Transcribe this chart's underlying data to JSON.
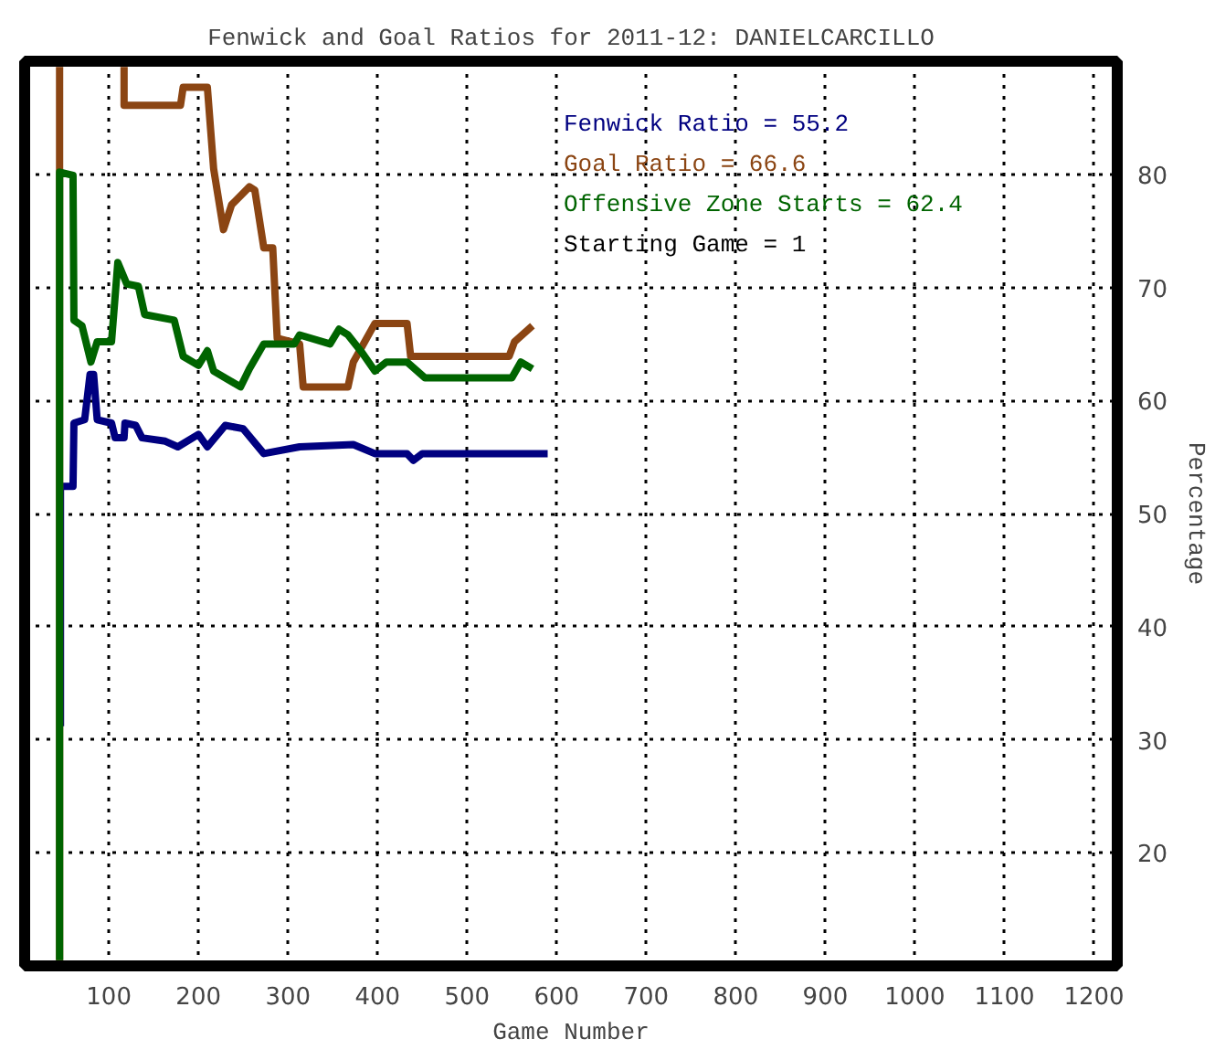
{
  "chart_data": {
    "type": "line",
    "title": "Fenwick and Goal Ratios for 2011-12: DANIELCARCILLO",
    "xlabel": "Game Number",
    "ylabel": "Percentage",
    "xlim": [
      6,
      1226
    ],
    "ylim": [
      10,
      90
    ],
    "xticks": [
      100,
      200,
      300,
      400,
      500,
      600,
      700,
      800,
      900,
      1000,
      1100,
      1200
    ],
    "yticks": [
      20,
      30,
      40,
      50,
      60,
      70,
      80
    ],
    "grid": true,
    "legend": "top right",
    "line_style": "solid",
    "marker": "none",
    "annotations": [
      "Starting Game = 1"
    ],
    "series": [
      {
        "name": "Fenwick Ratio = 55.2",
        "color": "#000080",
        "x": [
          46,
          46,
          50,
          60,
          61,
          73,
          79,
          83,
          87,
          103,
          107,
          117,
          118,
          130,
          137,
          163,
          177,
          200,
          210,
          230,
          250,
          273,
          313,
          373,
          397,
          433,
          440,
          450,
          590
        ],
        "values": [
          31.2,
          52.4,
          52.4,
          52.4,
          58.0,
          58.3,
          62.3,
          62.3,
          58.3,
          58.0,
          56.7,
          56.7,
          58.0,
          57.8,
          56.7,
          56.4,
          55.9,
          57.0,
          55.9,
          57.8,
          57.5,
          55.3,
          55.9,
          56.1,
          55.3,
          55.3,
          54.7,
          55.3,
          55.3
        ]
      },
      {
        "name": "Goal Ratio = 66.6",
        "color": "#8b4513",
        "x": [
          45,
          45,
          80,
          117,
          117,
          180,
          183,
          210,
          217,
          228,
          237,
          257,
          263,
          273,
          283,
          288,
          313,
          317,
          367,
          373,
          397,
          433,
          437,
          547,
          553,
          573
        ],
        "values": [
          10.5,
          89.5,
          null,
          89.5,
          86.1,
          86.1,
          87.7,
          87.7,
          80.5,
          75.1,
          77.3,
          78.9,
          78.6,
          73.5,
          73.5,
          65.5,
          65.0,
          61.2,
          61.2,
          63.4,
          66.8,
          66.8,
          63.9,
          63.9,
          65.2,
          66.6
        ]
      },
      {
        "name": "Offensive Zone Starts = 62.4",
        "color": "#006400",
        "x": [
          45,
          45,
          60,
          61,
          70,
          80,
          87,
          103,
          110,
          120,
          133,
          140,
          173,
          183,
          200,
          210,
          217,
          247,
          257,
          273,
          307,
          313,
          347,
          357,
          367,
          383,
          397,
          410,
          433,
          453,
          550,
          560,
          573
        ],
        "values": [
          10.5,
          80.2,
          79.9,
          67.1,
          66.6,
          63.4,
          65.2,
          65.2,
          72.2,
          70.3,
          70.1,
          67.6,
          67.1,
          63.9,
          63.1,
          64.4,
          62.6,
          61.2,
          62.8,
          65.0,
          65.0,
          65.8,
          65.0,
          66.3,
          65.8,
          64.2,
          62.6,
          63.4,
          63.4,
          62.0,
          62.0,
          63.4,
          62.8
        ]
      }
    ]
  }
}
